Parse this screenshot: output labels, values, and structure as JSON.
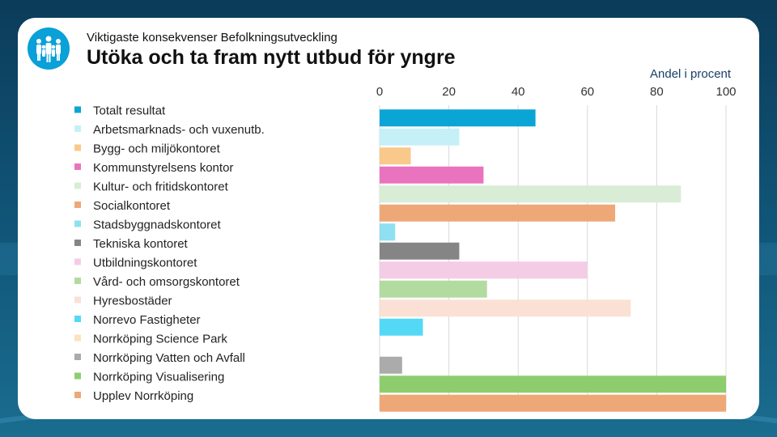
{
  "header": {
    "subtitle": "Viktigaste konsekvenser Befolkningsutveckling",
    "title": "Utöka och ta fram nytt utbud för yngre",
    "logo_icon": "people-group-icon"
  },
  "chart_data": {
    "type": "bar",
    "orientation": "horizontal",
    "title": "Utöka och ta fram nytt utbud för yngre",
    "xlabel": "Andel i procent",
    "ylabel": "",
    "xlim": [
      0,
      100
    ],
    "xticks": [
      0,
      20,
      40,
      60,
      80,
      100
    ],
    "grid": true,
    "legend_position": "left",
    "categories": [
      "Totalt resultat",
      "Arbetsmarknads- och vuxenutb.",
      "Bygg- och miljökontoret",
      "Kommunstyrelsens kontor",
      "Kultur- och fritidskontoret",
      "Socialkontoret",
      "Stadsbyggnadskontoret",
      "Tekniska kontoret",
      "Utbildningskontoret",
      "Vård- och omsorgskontoret",
      "Hyresbostäder",
      "Norrevo Fastigheter",
      "Norrköping Science Park",
      "Norrköping Vatten och Avfall",
      "Norrköping Visualisering",
      "Upplev Norrköping"
    ],
    "values": [
      45,
      23,
      9,
      30,
      87,
      68,
      4.5,
      23,
      60,
      31,
      72.5,
      12.5,
      0,
      6.5,
      100,
      100
    ],
    "colors": [
      "#0aa5d5",
      "#c6f0f8",
      "#f8c98a",
      "#ea73bf",
      "#d9edd6",
      "#eea878",
      "#8fe0f0",
      "#858585",
      "#f5cce6",
      "#b2dba0",
      "#fbe0d5",
      "#53d9f5",
      "#fde2bf",
      "#ababab",
      "#8ecd6e",
      "#eea878"
    ]
  }
}
